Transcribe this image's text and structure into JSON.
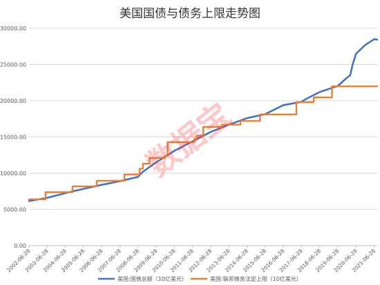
{
  "chart_data": {
    "type": "line",
    "title": "美国国债与债务上限走势图",
    "watermark": "数据宝",
    "xlabel": "",
    "ylabel": "",
    "ylim": [
      0,
      30000
    ],
    "yticks": [
      "0.00",
      "5000.00",
      "10000.00",
      "15000.00",
      "20000.00",
      "25000.00",
      "30000.00"
    ],
    "grid": true,
    "legend_position": "bottom",
    "x_range": [
      "2002-06-28",
      "2021-08-28"
    ],
    "xticks": [
      "2002-06-28",
      "2003-06-28",
      "2004-06-28",
      "2005-06-28",
      "2006-06-28",
      "2007-06-28",
      "2008-06-28",
      "2009-06-28",
      "2010-06-28",
      "2011-06-28",
      "2012-06-28",
      "2013-06-28",
      "2014-06-28",
      "2015-06-28",
      "2016-06-28",
      "2017-06-28",
      "2018-06-28",
      "2019-06-28",
      "2020-06-28",
      "2021-06-28"
    ],
    "series": [
      {
        "name": "美国:国债总额（10亿美元）",
        "color": "#4472C4",
        "style": "line",
        "points": [
          [
            "2002-06-28",
            6150
          ],
          [
            "2003-06-28",
            6600
          ],
          [
            "2004-06-28",
            7250
          ],
          [
            "2005-06-28",
            7850
          ],
          [
            "2006-06-28",
            8400
          ],
          [
            "2007-06-28",
            8900
          ],
          [
            "2008-01-01",
            9200
          ],
          [
            "2008-06-28",
            9500
          ],
          [
            "2008-10-01",
            10200
          ],
          [
            "2009-06-28",
            11500
          ],
          [
            "2010-06-28",
            13100
          ],
          [
            "2011-06-28",
            14400
          ],
          [
            "2012-06-28",
            15700
          ],
          [
            "2013-06-28",
            16700
          ],
          [
            "2014-06-28",
            17600
          ],
          [
            "2015-06-28",
            18150
          ],
          [
            "2016-06-28",
            19400
          ],
          [
            "2017-06-28",
            19850
          ],
          [
            "2017-09-15",
            20200
          ],
          [
            "2018-06-28",
            21200
          ],
          [
            "2019-06-28",
            22050
          ],
          [
            "2019-12-31",
            23200
          ],
          [
            "2020-03-01",
            23500
          ],
          [
            "2020-04-20",
            25000
          ],
          [
            "2020-06-28",
            26500
          ],
          [
            "2020-12-31",
            27700
          ],
          [
            "2021-06-28",
            28500
          ],
          [
            "2021-08-28",
            28450
          ]
        ]
      },
      {
        "name": "美国:联邦债务法定上限（10亿美元）",
        "color": "#ED7D31",
        "style": "step",
        "points": [
          [
            "2002-06-28",
            6400
          ],
          [
            "2003-05-27",
            7384
          ],
          [
            "2004-11-19",
            8184
          ],
          [
            "2006-03-20",
            8965
          ],
          [
            "2007-09-29",
            9815
          ],
          [
            "2008-07-30",
            10615
          ],
          [
            "2008-10-03",
            11315
          ],
          [
            "2009-02-17",
            12104
          ],
          [
            "2009-12-28",
            12394
          ],
          [
            "2010-02-12",
            14294
          ],
          [
            "2011-08-02",
            14694
          ],
          [
            "2011-09-22",
            15194
          ],
          [
            "2012-01-30",
            16394
          ],
          [
            "2013-02-04",
            16699
          ],
          [
            "2014-02-15",
            17212
          ],
          [
            "2015-03-16",
            18113
          ],
          [
            "2017-03-16",
            19809
          ],
          [
            "2018-03-01",
            20456
          ],
          [
            "2019-03-02",
            21988
          ],
          [
            "2021-08-28",
            21988
          ]
        ]
      }
    ]
  },
  "legend": {
    "items": [
      {
        "label": "美国:国债总额（10亿美元）",
        "color": "#4472C4"
      },
      {
        "label": "美国:联邦债务法定上限（10亿美元）",
        "color": "#ED7D31"
      }
    ]
  }
}
